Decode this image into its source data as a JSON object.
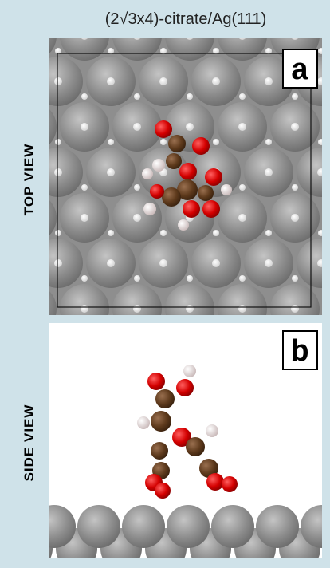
{
  "header": {
    "title": "(2√3x4)-citrate/Ag(111)"
  },
  "panels": [
    {
      "label": "a",
      "view": "TOP VIEW"
    },
    {
      "label": "b",
      "view": "SIDE VIEW"
    }
  ]
}
